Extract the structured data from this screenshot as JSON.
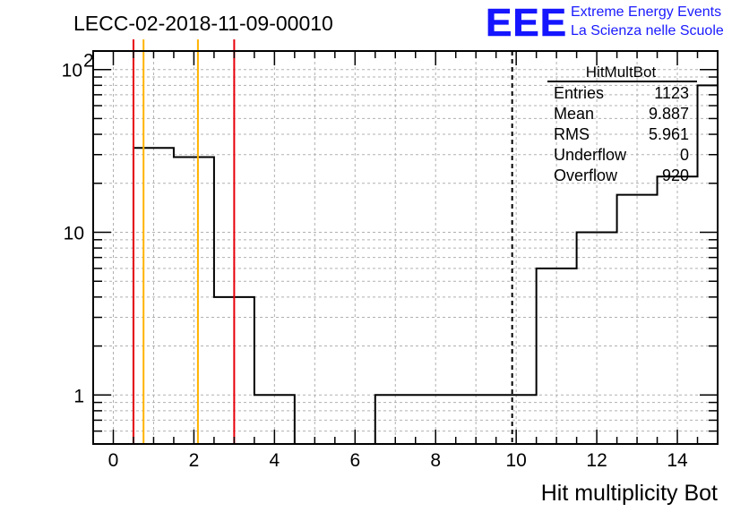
{
  "title": "LECC-02-2018-11-09-00010",
  "logo": {
    "mark": "EEE",
    "line1": "Extreme Energy Events",
    "line2": "La Scienza nelle Scuole",
    "color": "#1515ff"
  },
  "stats_box": {
    "name": "HitMultBot",
    "rows": [
      {
        "label": "Entries",
        "value": "1123"
      },
      {
        "label": "Mean",
        "value": "9.887"
      },
      {
        "label": "RMS",
        "value": "5.961"
      },
      {
        "label": "Underflow",
        "value": "0"
      },
      {
        "label": "Overflow",
        "value": "920"
      }
    ]
  },
  "chart_data": {
    "type": "histogram",
    "xlabel": "Hit multiplicity Bot",
    "ylabel": "",
    "xlim": [
      -0.5,
      15.0
    ],
    "ylim": [
      0.5,
      130
    ],
    "log_y": true,
    "grid": true,
    "x_ticks": [
      0,
      2,
      4,
      6,
      8,
      10,
      12,
      14
    ],
    "y_ticks": [
      {
        "value": 1,
        "label": "1"
      },
      {
        "value": 10,
        "label": "10"
      },
      {
        "value": 100,
        "label": "10",
        "exponent": "2"
      }
    ],
    "bins": [
      {
        "low": 0.5,
        "high": 1.5,
        "count": 33
      },
      {
        "low": 1.5,
        "high": 2.5,
        "count": 29
      },
      {
        "low": 2.5,
        "high": 3.5,
        "count": 4
      },
      {
        "low": 3.5,
        "high": 4.5,
        "count": 1
      },
      {
        "low": 4.5,
        "high": 5.5,
        "count": 0
      },
      {
        "low": 5.5,
        "high": 6.5,
        "count": 0
      },
      {
        "low": 6.5,
        "high": 7.5,
        "count": 1
      },
      {
        "low": 7.5,
        "high": 8.5,
        "count": 1
      },
      {
        "low": 8.5,
        "high": 9.5,
        "count": 1
      },
      {
        "low": 9.5,
        "high": 10.5,
        "count": 1
      },
      {
        "low": 10.5,
        "high": 11.5,
        "count": 6
      },
      {
        "low": 11.5,
        "high": 12.5,
        "count": 10
      },
      {
        "low": 12.5,
        "high": 13.5,
        "count": 17
      },
      {
        "low": 13.5,
        "high": 14.5,
        "count": 22
      },
      {
        "low": 14.5,
        "high": 15.0,
        "count": 80
      }
    ],
    "reference_lines": [
      {
        "x": 0.5,
        "color": "#e8000b",
        "style": "solid"
      },
      {
        "x": 0.75,
        "color": "#ffb300",
        "style": "solid"
      },
      {
        "x": 2.1,
        "color": "#ffb300",
        "style": "solid"
      },
      {
        "x": 3.0,
        "color": "#e8000b",
        "style": "solid"
      },
      {
        "x": 9.9,
        "color": "#000000",
        "style": "dashed"
      }
    ]
  }
}
